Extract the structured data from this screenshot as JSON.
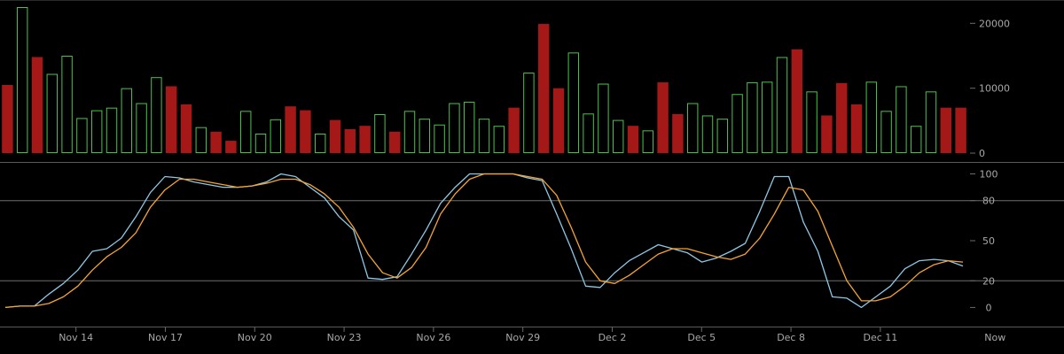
{
  "chart_data": [
    {
      "type": "bar",
      "panel": "volume",
      "ylim": [
        0,
        22500
      ],
      "y_ticks": [
        "0",
        "10000",
        "20000"
      ],
      "y_tick_values": [
        0,
        10000,
        20000
      ],
      "up_color": "#4cc24c",
      "down_color": "#a51818",
      "bars": [
        {
          "v": 10500,
          "dir": "down"
        },
        {
          "v": 22500,
          "dir": "up"
        },
        {
          "v": 14800,
          "dir": "down"
        },
        {
          "v": 12200,
          "dir": "up"
        },
        {
          "v": 15000,
          "dir": "up"
        },
        {
          "v": 5400,
          "dir": "up"
        },
        {
          "v": 6600,
          "dir": "up"
        },
        {
          "v": 7000,
          "dir": "up"
        },
        {
          "v": 10000,
          "dir": "up"
        },
        {
          "v": 7700,
          "dir": "up"
        },
        {
          "v": 11700,
          "dir": "up"
        },
        {
          "v": 10300,
          "dir": "down"
        },
        {
          "v": 7500,
          "dir": "down"
        },
        {
          "v": 4000,
          "dir": "up"
        },
        {
          "v": 3300,
          "dir": "down"
        },
        {
          "v": 1900,
          "dir": "down"
        },
        {
          "v": 6500,
          "dir": "up"
        },
        {
          "v": 3000,
          "dir": "up"
        },
        {
          "v": 5200,
          "dir": "up"
        },
        {
          "v": 7200,
          "dir": "down"
        },
        {
          "v": 6600,
          "dir": "down"
        },
        {
          "v": 3000,
          "dir": "up"
        },
        {
          "v": 5100,
          "dir": "down"
        },
        {
          "v": 3700,
          "dir": "down"
        },
        {
          "v": 4200,
          "dir": "down"
        },
        {
          "v": 6000,
          "dir": "up"
        },
        {
          "v": 3300,
          "dir": "down"
        },
        {
          "v": 6500,
          "dir": "up"
        },
        {
          "v": 5300,
          "dir": "up"
        },
        {
          "v": 4400,
          "dir": "up"
        },
        {
          "v": 7700,
          "dir": "up"
        },
        {
          "v": 7900,
          "dir": "up"
        },
        {
          "v": 5300,
          "dir": "up"
        },
        {
          "v": 4200,
          "dir": "up"
        },
        {
          "v": 7000,
          "dir": "down"
        },
        {
          "v": 12400,
          "dir": "up"
        },
        {
          "v": 19900,
          "dir": "down"
        },
        {
          "v": 10000,
          "dir": "down"
        },
        {
          "v": 15500,
          "dir": "up"
        },
        {
          "v": 6100,
          "dir": "up"
        },
        {
          "v": 10700,
          "dir": "up"
        },
        {
          "v": 5100,
          "dir": "up"
        },
        {
          "v": 4200,
          "dir": "down"
        },
        {
          "v": 3500,
          "dir": "up"
        },
        {
          "v": 10900,
          "dir": "down"
        },
        {
          "v": 6000,
          "dir": "down"
        },
        {
          "v": 7700,
          "dir": "up"
        },
        {
          "v": 5800,
          "dir": "up"
        },
        {
          "v": 5300,
          "dir": "up"
        },
        {
          "v": 9100,
          "dir": "up"
        },
        {
          "v": 10900,
          "dir": "up"
        },
        {
          "v": 11000,
          "dir": "up"
        },
        {
          "v": 14800,
          "dir": "up"
        },
        {
          "v": 16000,
          "dir": "down"
        },
        {
          "v": 9500,
          "dir": "up"
        },
        {
          "v": 5800,
          "dir": "down"
        },
        {
          "v": 10800,
          "dir": "down"
        },
        {
          "v": 7500,
          "dir": "down"
        },
        {
          "v": 11000,
          "dir": "up"
        },
        {
          "v": 6500,
          "dir": "up"
        },
        {
          "v": 10300,
          "dir": "up"
        },
        {
          "v": 4200,
          "dir": "up"
        },
        {
          "v": 9500,
          "dir": "up"
        },
        {
          "v": 7000,
          "dir": "down"
        },
        {
          "v": 7000,
          "dir": "down"
        }
      ]
    },
    {
      "type": "line",
      "panel": "oscillator",
      "ylim": [
        -7,
        101
      ],
      "y_ticks": [
        "0",
        "20",
        "50",
        "80",
        "100"
      ],
      "y_tick_values": [
        0,
        20,
        50,
        80,
        100
      ],
      "gridlines_at": [
        20,
        80
      ],
      "x_ticks": [
        "Nov 14",
        "Nov 17",
        "Nov 20",
        "Nov 23",
        "Nov 26",
        "Nov 29",
        "Dec 2",
        "Dec 5",
        "Dec 8",
        "Dec 11",
        "Now"
      ],
      "x_tick_index": [
        4.6,
        10.6,
        16.6,
        22.6,
        28.6,
        34.6,
        40.6,
        46.6,
        52.6,
        58.6,
        66.3
      ],
      "series": [
        {
          "color": "#8ec7e6",
          "values": [
            0,
            1,
            1,
            10,
            18,
            28,
            42,
            44,
            52,
            68,
            86,
            98,
            97,
            94,
            92,
            90,
            90,
            91,
            94,
            100,
            98,
            90,
            82,
            68,
            58,
            22,
            21,
            23,
            40,
            58,
            78,
            90,
            100,
            100,
            100,
            100,
            97,
            95,
            70,
            44,
            16,
            15,
            26,
            35,
            41,
            47,
            44,
            41,
            34,
            37,
            42,
            48,
            72,
            98,
            98,
            64,
            42,
            8,
            7,
            0,
            8,
            16,
            29,
            35,
            36,
            35,
            31
          ]
        },
        {
          "color": "#f5a431",
          "values": [
            0,
            1,
            1,
            3,
            8,
            16,
            28,
            38,
            45,
            56,
            75,
            88,
            96,
            96,
            94,
            92,
            90,
            91,
            93,
            96,
            96,
            92,
            85,
            75,
            60,
            40,
            26,
            22,
            30,
            45,
            70,
            85,
            96,
            100,
            100,
            100,
            98,
            96,
            84,
            60,
            34,
            20,
            18,
            24,
            32,
            40,
            44,
            44,
            41,
            38,
            36,
            40,
            52,
            70,
            90,
            88,
            72,
            46,
            20,
            5,
            5,
            8,
            16,
            26,
            32,
            35,
            34
          ]
        }
      ]
    }
  ]
}
